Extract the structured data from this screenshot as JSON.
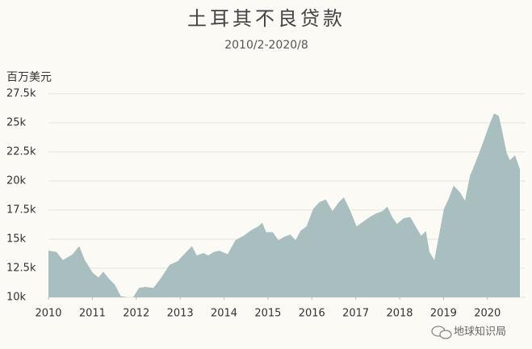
{
  "chart_data": {
    "type": "area",
    "title": "土耳其不良贷款",
    "subtitle": "2010/2-2020/8",
    "y_label": "百万美元",
    "watermark": "地球知识局",
    "color": "#a9bfbf",
    "grid": true,
    "x": [
      2010.0,
      2010.18,
      2010.33,
      2010.55,
      2010.7,
      2010.83,
      2011.01,
      2011.14,
      2011.25,
      2011.38,
      2011.51,
      2011.65,
      2011.8,
      2011.93,
      2012.06,
      2012.21,
      2012.39,
      2012.57,
      2012.76,
      2012.94,
      2013.09,
      2013.27,
      2013.38,
      2013.53,
      2013.64,
      2013.77,
      2013.9,
      2014.08,
      2014.26,
      2014.45,
      2014.63,
      2014.78,
      2014.87,
      2014.96,
      2015.11,
      2015.24,
      2015.37,
      2015.51,
      2015.63,
      2015.74,
      2015.88,
      2016.03,
      2016.18,
      2016.32,
      2016.47,
      2016.62,
      2016.73,
      2016.88,
      2017.02,
      2017.17,
      2017.32,
      2017.46,
      2017.61,
      2017.72,
      2017.83,
      2017.94,
      2018.09,
      2018.24,
      2018.38,
      2018.49,
      2018.6,
      2018.68,
      2018.79,
      2018.9,
      2019.01,
      2019.12,
      2019.23,
      2019.38,
      2019.49,
      2019.6,
      2019.74,
      2019.89,
      2020.04,
      2020.15,
      2020.26,
      2020.33,
      2020.44,
      2020.51,
      2020.63,
      2020.74
    ],
    "values": [
      14000,
      13900,
      13200,
      13700,
      14400,
      13200,
      12100,
      11700,
      12200,
      11600,
      11100,
      10100,
      10000,
      10000,
      10800,
      10900,
      10800,
      11700,
      12800,
      13100,
      13700,
      14400,
      13600,
      13800,
      13600,
      13900,
      14000,
      13700,
      14900,
      15300,
      15800,
      16100,
      16400,
      15600,
      15600,
      14900,
      15200,
      15400,
      14900,
      15700,
      16100,
      17600,
      18200,
      18400,
      17400,
      18200,
      18600,
      17400,
      16100,
      16500,
      16900,
      17200,
      17400,
      17800,
      16900,
      16300,
      16800,
      16900,
      16000,
      15300,
      15700,
      13900,
      13200,
      15400,
      17600,
      18500,
      19600,
      19000,
      18300,
      20400,
      21700,
      23200,
      24800,
      25800,
      25600,
      24400,
      22400,
      21800,
      22200,
      21000
    ],
    "xlim": [
      2010,
      2020.85
    ],
    "xticks": [
      2010,
      2011,
      2012,
      2013,
      2014,
      2015,
      2016,
      2017,
      2018,
      2019,
      2020
    ],
    "ylim": [
      10000,
      27500
    ],
    "yticks": [
      {
        "value": 10000,
        "label": "10k"
      },
      {
        "value": 12500,
        "label": "12.5k"
      },
      {
        "value": 15000,
        "label": "15k"
      },
      {
        "value": 17500,
        "label": "17.5k"
      },
      {
        "value": 20000,
        "label": "20k"
      },
      {
        "value": 22500,
        "label": "22.5k"
      },
      {
        "value": 25000,
        "label": "25k"
      },
      {
        "value": 27500,
        "label": "27.5k"
      }
    ]
  }
}
